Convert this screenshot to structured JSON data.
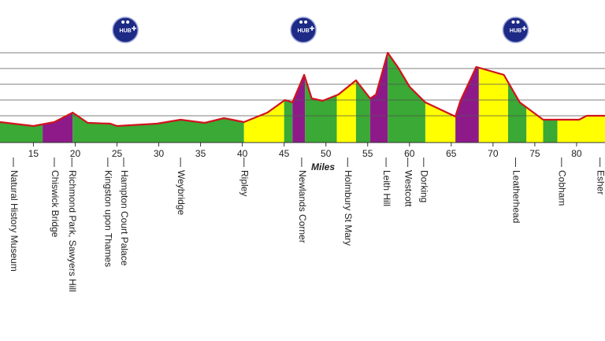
{
  "chart_data": {
    "type": "elevation-profile",
    "x_label": "Miles",
    "xlim": [
      11,
      83.4
    ],
    "xticks": [
      15,
      20,
      25,
      30,
      35,
      40,
      45,
      50,
      55,
      60,
      65,
      70,
      75,
      80
    ],
    "ylim": [
      0,
      5.8
    ],
    "yticks": [
      1.7,
      2.7,
      3.7,
      4.7,
      5.7
    ],
    "grid": true,
    "line_color": "#d0141e",
    "x": [
      11,
      15,
      17.5,
      19.7,
      21.5,
      24.2,
      25,
      29.8,
      32.6,
      35.5,
      37.8,
      40.2,
      43,
      45.1,
      46,
      47.4,
      48.3,
      49.6,
      51.5,
      53.6,
      55.3,
      56,
      57.4,
      58.6,
      60,
      61.9,
      65.5,
      66.1,
      68,
      71.3,
      73.2,
      76,
      80.3,
      81.2,
      83.4
    ],
    "values": [
      1.3,
      1.05,
      1.3,
      1.9,
      1.25,
      1.2,
      1.05,
      1.2,
      1.45,
      1.25,
      1.55,
      1.3,
      1.9,
      2.7,
      2.55,
      4.3,
      2.8,
      2.65,
      3.05,
      3.95,
      2.8,
      3.05,
      5.7,
      4.8,
      3.55,
      2.55,
      1.65,
      2.65,
      4.8,
      4.3,
      2.55,
      1.45,
      1.45,
      1.7,
      1.7
    ],
    "segments": [
      {
        "from": 11,
        "to": 16.1,
        "color": "#3aa935"
      },
      {
        "from": 16.1,
        "to": 19.7,
        "color": "#8e1a8a"
      },
      {
        "from": 19.7,
        "to": 40.2,
        "color": "#3aa935"
      },
      {
        "from": 40.2,
        "to": 45,
        "color": "#ffff00"
      },
      {
        "from": 45,
        "to": 46,
        "color": "#3aa935"
      },
      {
        "from": 46,
        "to": 47.5,
        "color": "#8e1a8a"
      },
      {
        "from": 47.5,
        "to": 51.3,
        "color": "#3aa935"
      },
      {
        "from": 51.3,
        "to": 53.6,
        "color": "#ffff00"
      },
      {
        "from": 53.6,
        "to": 55.3,
        "color": "#3aa935"
      },
      {
        "from": 55.3,
        "to": 57.4,
        "color": "#8e1a8a"
      },
      {
        "from": 57.4,
        "to": 61.9,
        "color": "#3aa935"
      },
      {
        "from": 61.9,
        "to": 65.5,
        "color": "#ffff00"
      },
      {
        "from": 65.5,
        "to": 68.3,
        "color": "#8e1a8a"
      },
      {
        "from": 68.3,
        "to": 71.8,
        "color": "#ffff00"
      },
      {
        "from": 71.8,
        "to": 74,
        "color": "#3aa935"
      },
      {
        "from": 74,
        "to": 76,
        "color": "#ffff00"
      },
      {
        "from": 76,
        "to": 77.7,
        "color": "#3aa935"
      },
      {
        "from": 77.7,
        "to": 83.4,
        "color": "#ffff00"
      }
    ],
    "places": [
      {
        "x": 12.6,
        "label": "Natural History Museum"
      },
      {
        "x": 17.5,
        "label": "Chiswick Bridge"
      },
      {
        "x": 19.6,
        "label": "Richmond Park, Sawyers Hill"
      },
      {
        "x": 23.9,
        "label": "Kingston upon Thames"
      },
      {
        "x": 25.8,
        "label": "Hampton Court Palace"
      },
      {
        "x": 32.6,
        "label": "Weybridge"
      },
      {
        "x": 40.2,
        "label": "Ripley"
      },
      {
        "x": 47.1,
        "label": "Newlands Corner"
      },
      {
        "x": 52.6,
        "label": "Holmbury St Mary"
      },
      {
        "x": 57.2,
        "label": "Leith Hill"
      },
      {
        "x": 59.8,
        "label": "Westcott"
      },
      {
        "x": 61.7,
        "label": "Dorking"
      },
      {
        "x": 72.7,
        "label": "Leatherhead"
      },
      {
        "x": 78.2,
        "label": "Cobham"
      },
      {
        "x": 82.8,
        "label": "Esher"
      }
    ],
    "hubs": [
      {
        "x": 26,
        "label": "HUB"
      },
      {
        "x": 47.3,
        "label": "HUB"
      },
      {
        "x": 72.7,
        "label": "HUB"
      }
    ]
  }
}
